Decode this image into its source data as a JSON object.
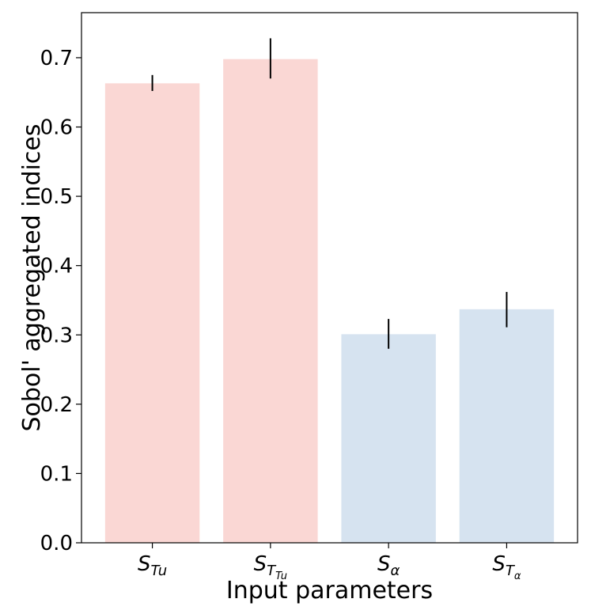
{
  "chart_data": {
    "type": "bar",
    "title": "",
    "xlabel": "Input parameters",
    "ylabel": "Sobol' aggregated indices",
    "categories": [
      {
        "main": "S",
        "sub": "Tu",
        "subsub": ""
      },
      {
        "main": "S",
        "sub": "T",
        "subsub": "Tu"
      },
      {
        "main": "S",
        "sub": "α",
        "subsub": ""
      },
      {
        "main": "S",
        "sub": "T",
        "subsub": "α"
      }
    ],
    "values": [
      0.663,
      0.698,
      0.301,
      0.337
    ],
    "error_low": [
      0.652,
      0.67,
      0.28,
      0.311
    ],
    "error_high": [
      0.675,
      0.728,
      0.323,
      0.362
    ],
    "bar_colors": [
      "#fad7d4",
      "#fad7d4",
      "#d6e3f0",
      "#d6e3f0"
    ],
    "error_color": "#000000",
    "ylim": [
      0.0,
      0.765
    ],
    "yticks": [
      "0.0",
      "0.1",
      "0.2",
      "0.3",
      "0.4",
      "0.5",
      "0.6",
      "0.7"
    ],
    "grid": false,
    "legend": "none"
  }
}
